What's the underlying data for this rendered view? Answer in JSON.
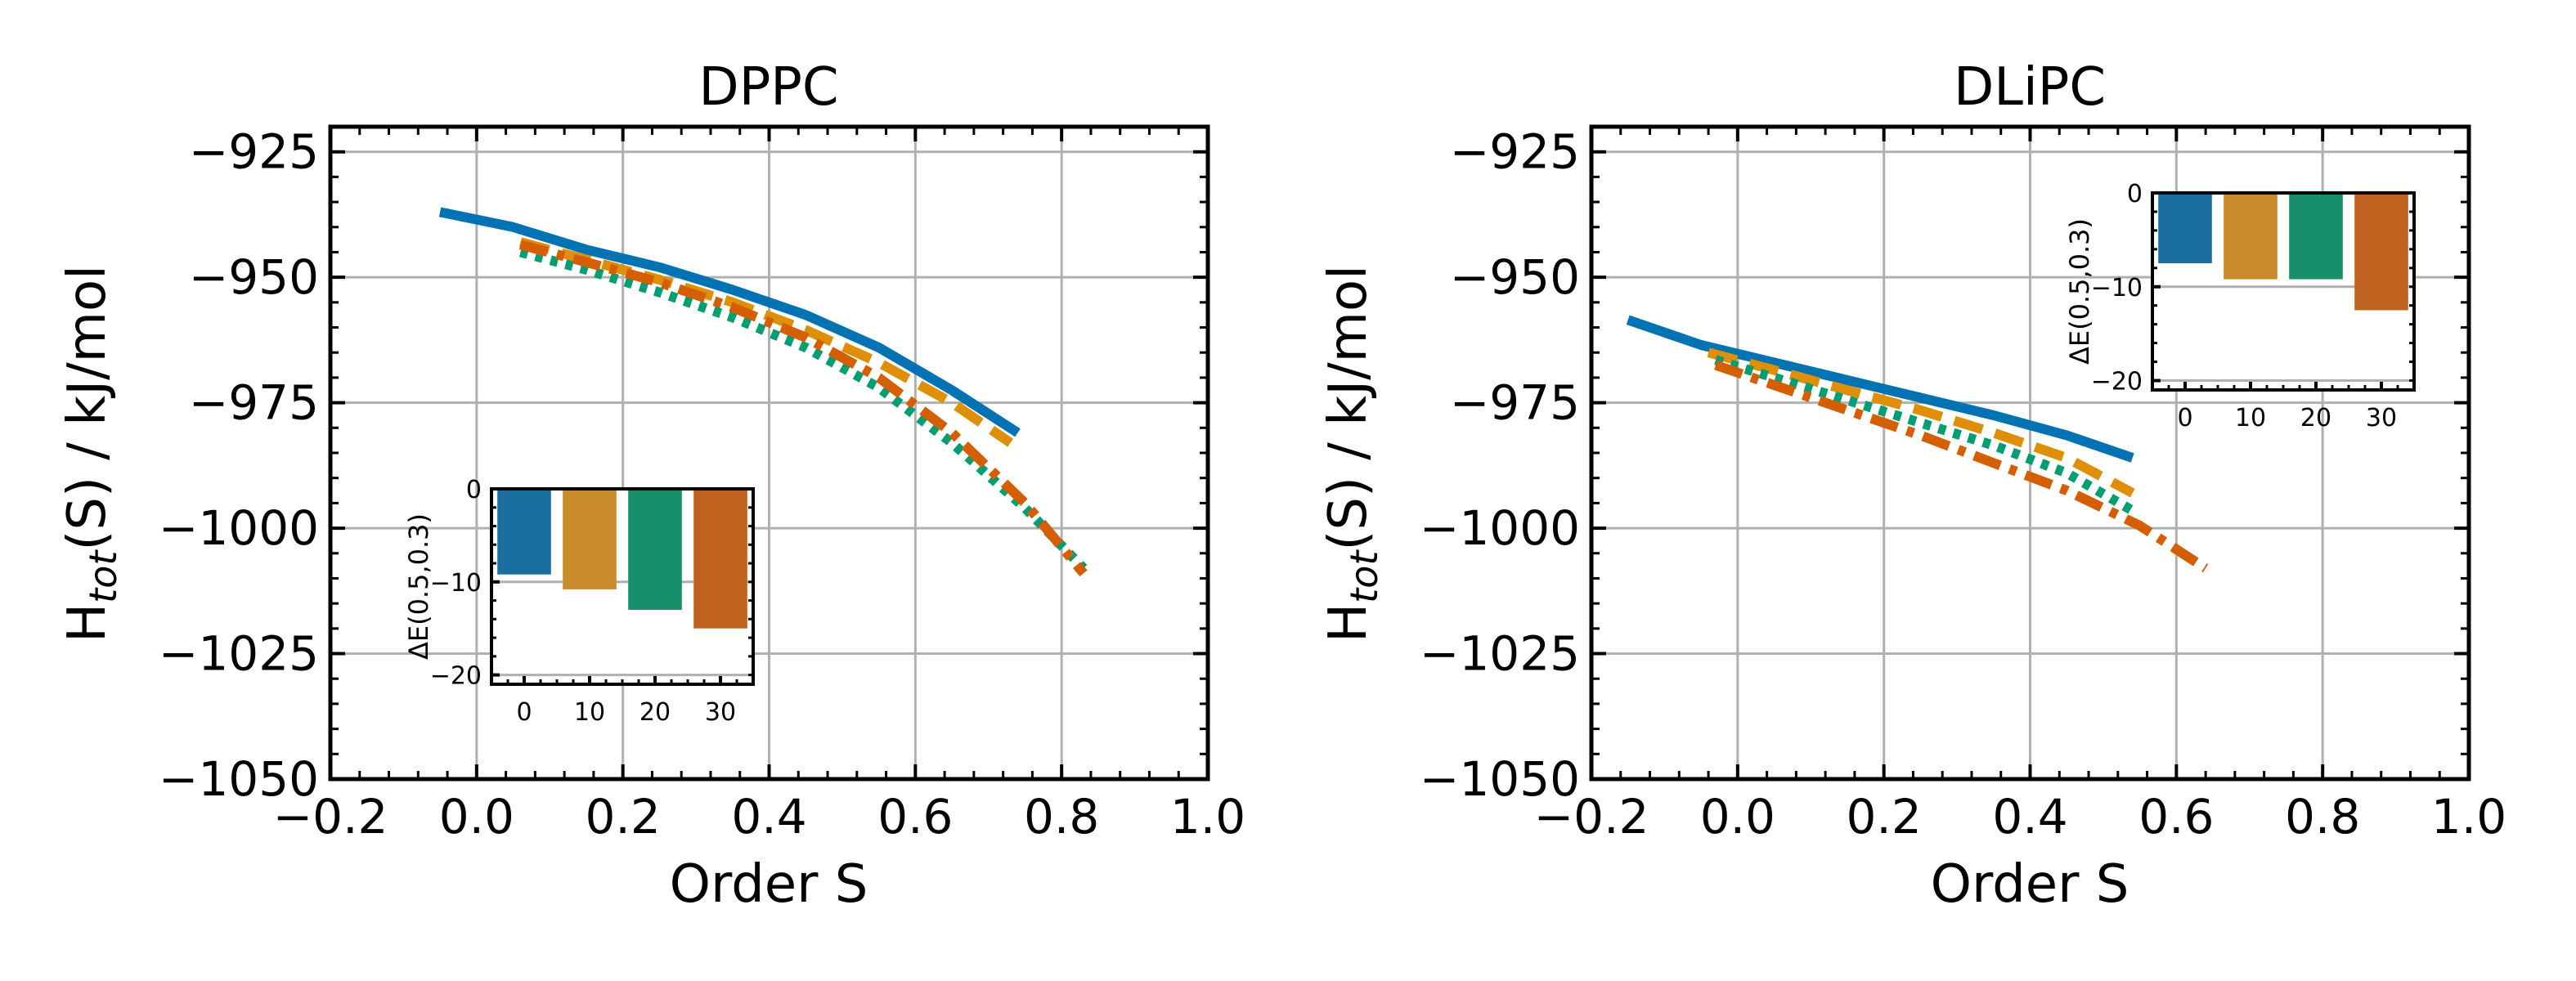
{
  "chart_data": [
    {
      "type": "line",
      "title": "DPPC",
      "xlabel": "Order S",
      "ylabel_main": "H",
      "ylabel_sub": "tot",
      "ylabel_rest": "(S) / kJ/mol",
      "xlim": [
        -0.2,
        1.0
      ],
      "ylim": [
        -1050,
        -920
      ],
      "xticks": [
        -0.2,
        0.0,
        0.2,
        0.4,
        0.6,
        0.8,
        1.0
      ],
      "xtick_labels": [
        "−0.2",
        "0.0",
        "0.2",
        "0.4",
        "0.6",
        "0.8",
        "1.0"
      ],
      "yticks": [
        -925,
        -950,
        -975,
        -1000,
        -1025,
        -1050
      ],
      "ytick_labels": [
        "−925",
        "−950",
        "−975",
        "−1000",
        "−1025",
        "−1050"
      ],
      "grid": true,
      "series": [
        {
          "name": "0",
          "color": "#0173b2",
          "dash": "solid",
          "x": [
            -0.05,
            0.05,
            0.15,
            0.25,
            0.35,
            0.45,
            0.55,
            0.65,
            0.74
          ],
          "y": [
            -937,
            -940,
            -944.5,
            -948,
            -952.5,
            -957.5,
            -964,
            -972.5,
            -981
          ]
        },
        {
          "name": "10",
          "color": "#de8f05",
          "dash": "dashed",
          "x": [
            0.06,
            0.15,
            0.25,
            0.35,
            0.45,
            0.55,
            0.65,
            0.73
          ],
          "y": [
            -943,
            -946.5,
            -950.5,
            -955,
            -960.5,
            -967,
            -975,
            -983
          ]
        },
        {
          "name": "20",
          "color": "#029e73",
          "dash": "dotted",
          "x": [
            0.06,
            0.15,
            0.25,
            0.35,
            0.45,
            0.55,
            0.65,
            0.75,
            0.83
          ],
          "y": [
            -945,
            -948.5,
            -953,
            -958,
            -964,
            -972,
            -983,
            -996,
            -1008
          ]
        },
        {
          "name": "30",
          "color": "#d55e00",
          "dash": "dashdot",
          "x": [
            0.06,
            0.15,
            0.25,
            0.35,
            0.45,
            0.55,
            0.65,
            0.75,
            0.83
          ],
          "y": [
            -943.5,
            -947,
            -951,
            -956,
            -962,
            -970,
            -981,
            -995,
            -1009
          ]
        }
      ],
      "inset": {
        "type": "bar",
        "ylabel": "ΔE(0.5,0.3)",
        "categories": [
          "0",
          "10",
          "20",
          "30"
        ],
        "values": [
          -9.2,
          -10.8,
          -13,
          -15
        ],
        "colors": [
          "#1a6fa0",
          "#c88a2a",
          "#178f6a",
          "#c0621f"
        ],
        "ylim": [
          -21,
          0
        ],
        "yticks": [
          0,
          -10,
          -20
        ],
        "ytick_labels": [
          "0",
          "−10",
          "−20"
        ],
        "placement": "lower-left"
      }
    },
    {
      "type": "line",
      "title": "DLiPC",
      "xlabel": "Order S",
      "ylabel_main": "H",
      "ylabel_sub": "tot",
      "ylabel_rest": "(S) / kJ/mol",
      "xlim": [
        -0.2,
        1.0
      ],
      "ylim": [
        -1050,
        -920
      ],
      "xticks": [
        -0.2,
        0.0,
        0.2,
        0.4,
        0.6,
        0.8,
        1.0
      ],
      "xtick_labels": [
        "−0.2",
        "0.0",
        "0.2",
        "0.4",
        "0.6",
        "0.8",
        "1.0"
      ],
      "yticks": [
        -925,
        -950,
        -975,
        -1000,
        -1025,
        -1050
      ],
      "ytick_labels": [
        "−925",
        "−950",
        "−975",
        "−1000",
        "−1025",
        "−1050"
      ],
      "grid": true,
      "series": [
        {
          "name": "0",
          "color": "#0173b2",
          "dash": "solid",
          "x": [
            -0.15,
            -0.05,
            0.05,
            0.15,
            0.25,
            0.35,
            0.45,
            0.54
          ],
          "y": [
            -958.5,
            -963.5,
            -967,
            -970.5,
            -974,
            -977.5,
            -981.5,
            -986
          ]
        },
        {
          "name": "10",
          "color": "#de8f05",
          "dash": "dashed",
          "x": [
            -0.04,
            0.05,
            0.15,
            0.25,
            0.35,
            0.45,
            0.54
          ],
          "y": [
            -965,
            -968.5,
            -972.5,
            -976.5,
            -981,
            -986,
            -993
          ]
        },
        {
          "name": "20",
          "color": "#029e73",
          "dash": "dotted",
          "x": [
            -0.03,
            0.05,
            0.15,
            0.25,
            0.35,
            0.45,
            0.54
          ],
          "y": [
            -966.5,
            -970,
            -974.5,
            -979,
            -983.5,
            -989,
            -996.5
          ]
        },
        {
          "name": "30",
          "color": "#d55e00",
          "dash": "dashdot",
          "x": [
            -0.03,
            0.05,
            0.15,
            0.25,
            0.35,
            0.45,
            0.55,
            0.64
          ],
          "y": [
            -967.5,
            -971.5,
            -976.5,
            -981.5,
            -987,
            -992.5,
            -999.5,
            -1008
          ]
        }
      ],
      "inset": {
        "type": "bar",
        "ylabel": "ΔE(0.5,0.3)",
        "categories": [
          "0",
          "10",
          "20",
          "30"
        ],
        "values": [
          -7.5,
          -9.2,
          -9.2,
          -12.5
        ],
        "colors": [
          "#1a6fa0",
          "#c88a2a",
          "#178f6a",
          "#c0621f"
        ],
        "ylim": [
          -21,
          0
        ],
        "yticks": [
          0,
          -10,
          -20
        ],
        "ytick_labels": [
          "0",
          "−10",
          "−20"
        ],
        "placement": "upper-right"
      }
    }
  ]
}
